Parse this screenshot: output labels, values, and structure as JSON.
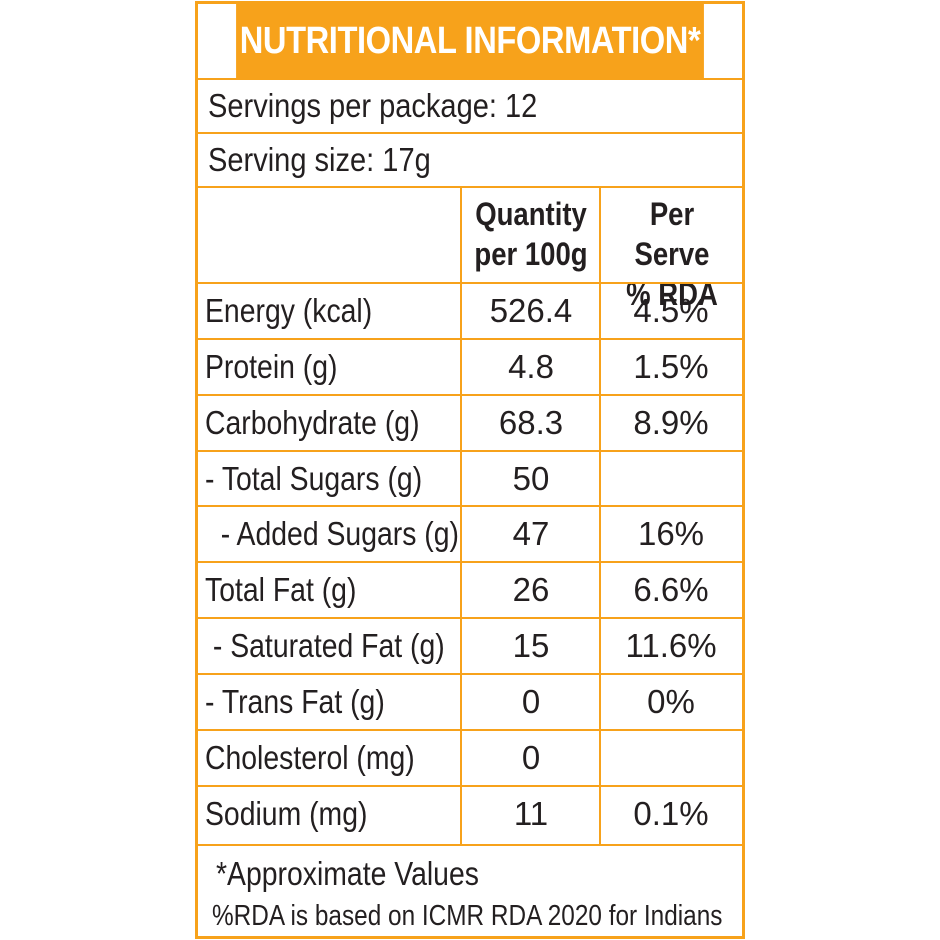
{
  "title": "NUTRITIONAL INFORMATION*",
  "servings_per_package": "Servings per package: 12",
  "serving_size": "Serving size: 17g",
  "headers": {
    "quantity_line1": "Quantity",
    "quantity_line2": "per 100g",
    "rda_line1": "Per Serve",
    "rda_line2": "% RDA"
  },
  "rows": [
    {
      "name": "Energy (kcal)",
      "quantity": "526.4",
      "rda": "4.5%"
    },
    {
      "name": "Protein (g)",
      "quantity": "4.8",
      "rda": "1.5%"
    },
    {
      "name": "Carbohydrate (g)",
      "quantity": "68.3",
      "rda": "8.9%"
    },
    {
      "name": "- Total Sugars (g)",
      "quantity": "50",
      "rda": ""
    },
    {
      "name": "  - Added Sugars (g)",
      "quantity": "47",
      "rda": "16%"
    },
    {
      "name": "Total Fat (g)",
      "quantity": "26",
      "rda": "6.6%"
    },
    {
      "name": " - Saturated Fat (g)",
      "quantity": "15",
      "rda": "11.6%"
    },
    {
      "name": "- Trans Fat (g)",
      "quantity": "0",
      "rda": "0%"
    },
    {
      "name": "Cholesterol (mg)",
      "quantity": "0",
      "rda": ""
    },
    {
      "name": "Sodium (mg)",
      "quantity": "11",
      "rda": "0.1%"
    }
  ],
  "footnote1": "*Approximate Values",
  "footnote2": "%RDA is based on ICMR RDA 2020 for Indians",
  "colors": {
    "accent": "#f7a21b",
    "text": "#231f20",
    "title_text": "#ffffff"
  }
}
